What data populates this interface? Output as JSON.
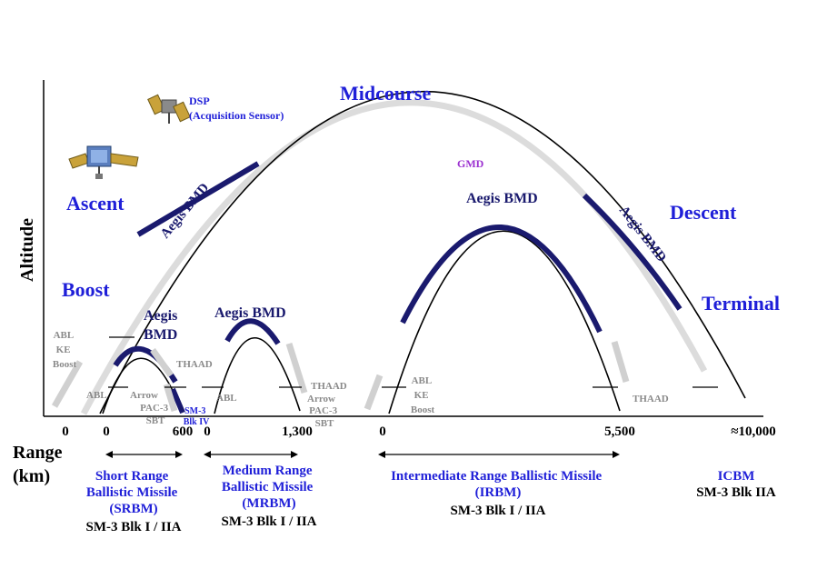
{
  "y_axis_label": "Altitude",
  "range_label_line1": "Range",
  "range_label_line2": "(km)",
  "phases": {
    "boost": "Boost",
    "ascent": "Ascent",
    "midcourse": "Midcourse",
    "descent": "Descent",
    "terminal": "Terminal"
  },
  "sensor": {
    "line1": "DSP",
    "line2": "(Acquisition Sensor)"
  },
  "gmd_label": "GMD",
  "aegis": {
    "ascent": "Aegis BMD",
    "descent": "Aegis BMD",
    "srbm_line1": "Aegis",
    "srbm_line2": "BMD",
    "mrbm": "Aegis BMD",
    "irbm": "Aegis BMD"
  },
  "system_labels": {
    "abl_ke_boost_1": [
      "ABL",
      "KE",
      "Boost"
    ],
    "abl_1": "ABL",
    "arrow_1": "Arrow",
    "pac3_sbt_1": [
      "PAC-3",
      "SBT"
    ],
    "thaad_1": "THAAD",
    "sm3_blk4": [
      "SM-3",
      "Blk IV"
    ],
    "abl_2": "ABL",
    "thaad_2": "THAAD",
    "arrow_2": "Arrow",
    "pac3_sbt_2": [
      "PAC-3",
      "SBT"
    ],
    "abl_ke_boost_2": [
      "ABL",
      "KE",
      "Boost"
    ],
    "thaad_3": "THAAD"
  },
  "range_ticks": [
    "0",
    "0",
    "600",
    "0",
    "1,300",
    "0",
    "5,500",
    "≈10,000"
  ],
  "categories": [
    {
      "name_lines": [
        "Short Range",
        "Ballistic Missile",
        "(SRBM)"
      ],
      "interceptor": "SM-3 Blk I / IIA"
    },
    {
      "name_lines": [
        "Medium Range",
        "Ballistic Missile",
        "(MRBM)"
      ],
      "interceptor": "SM-3 Blk I / IIA"
    },
    {
      "name_lines": [
        "Intermediate Range Ballistic Missile",
        "(IRBM)"
      ],
      "interceptor": "SM-3 Blk I / IIA"
    },
    {
      "name_lines": [
        "ICBM"
      ],
      "interceptor": "SM-3 Blk IIA"
    }
  ],
  "colors": {
    "phase_text": "#1f1fd8",
    "aegis_arc": "#1a1a6e",
    "gmd_text": "#9b30d0",
    "system_grey": "#8a8a8a"
  },
  "icons": [
    "satellite-icon",
    "satellite-icon",
    "double-arrow-icon"
  ]
}
